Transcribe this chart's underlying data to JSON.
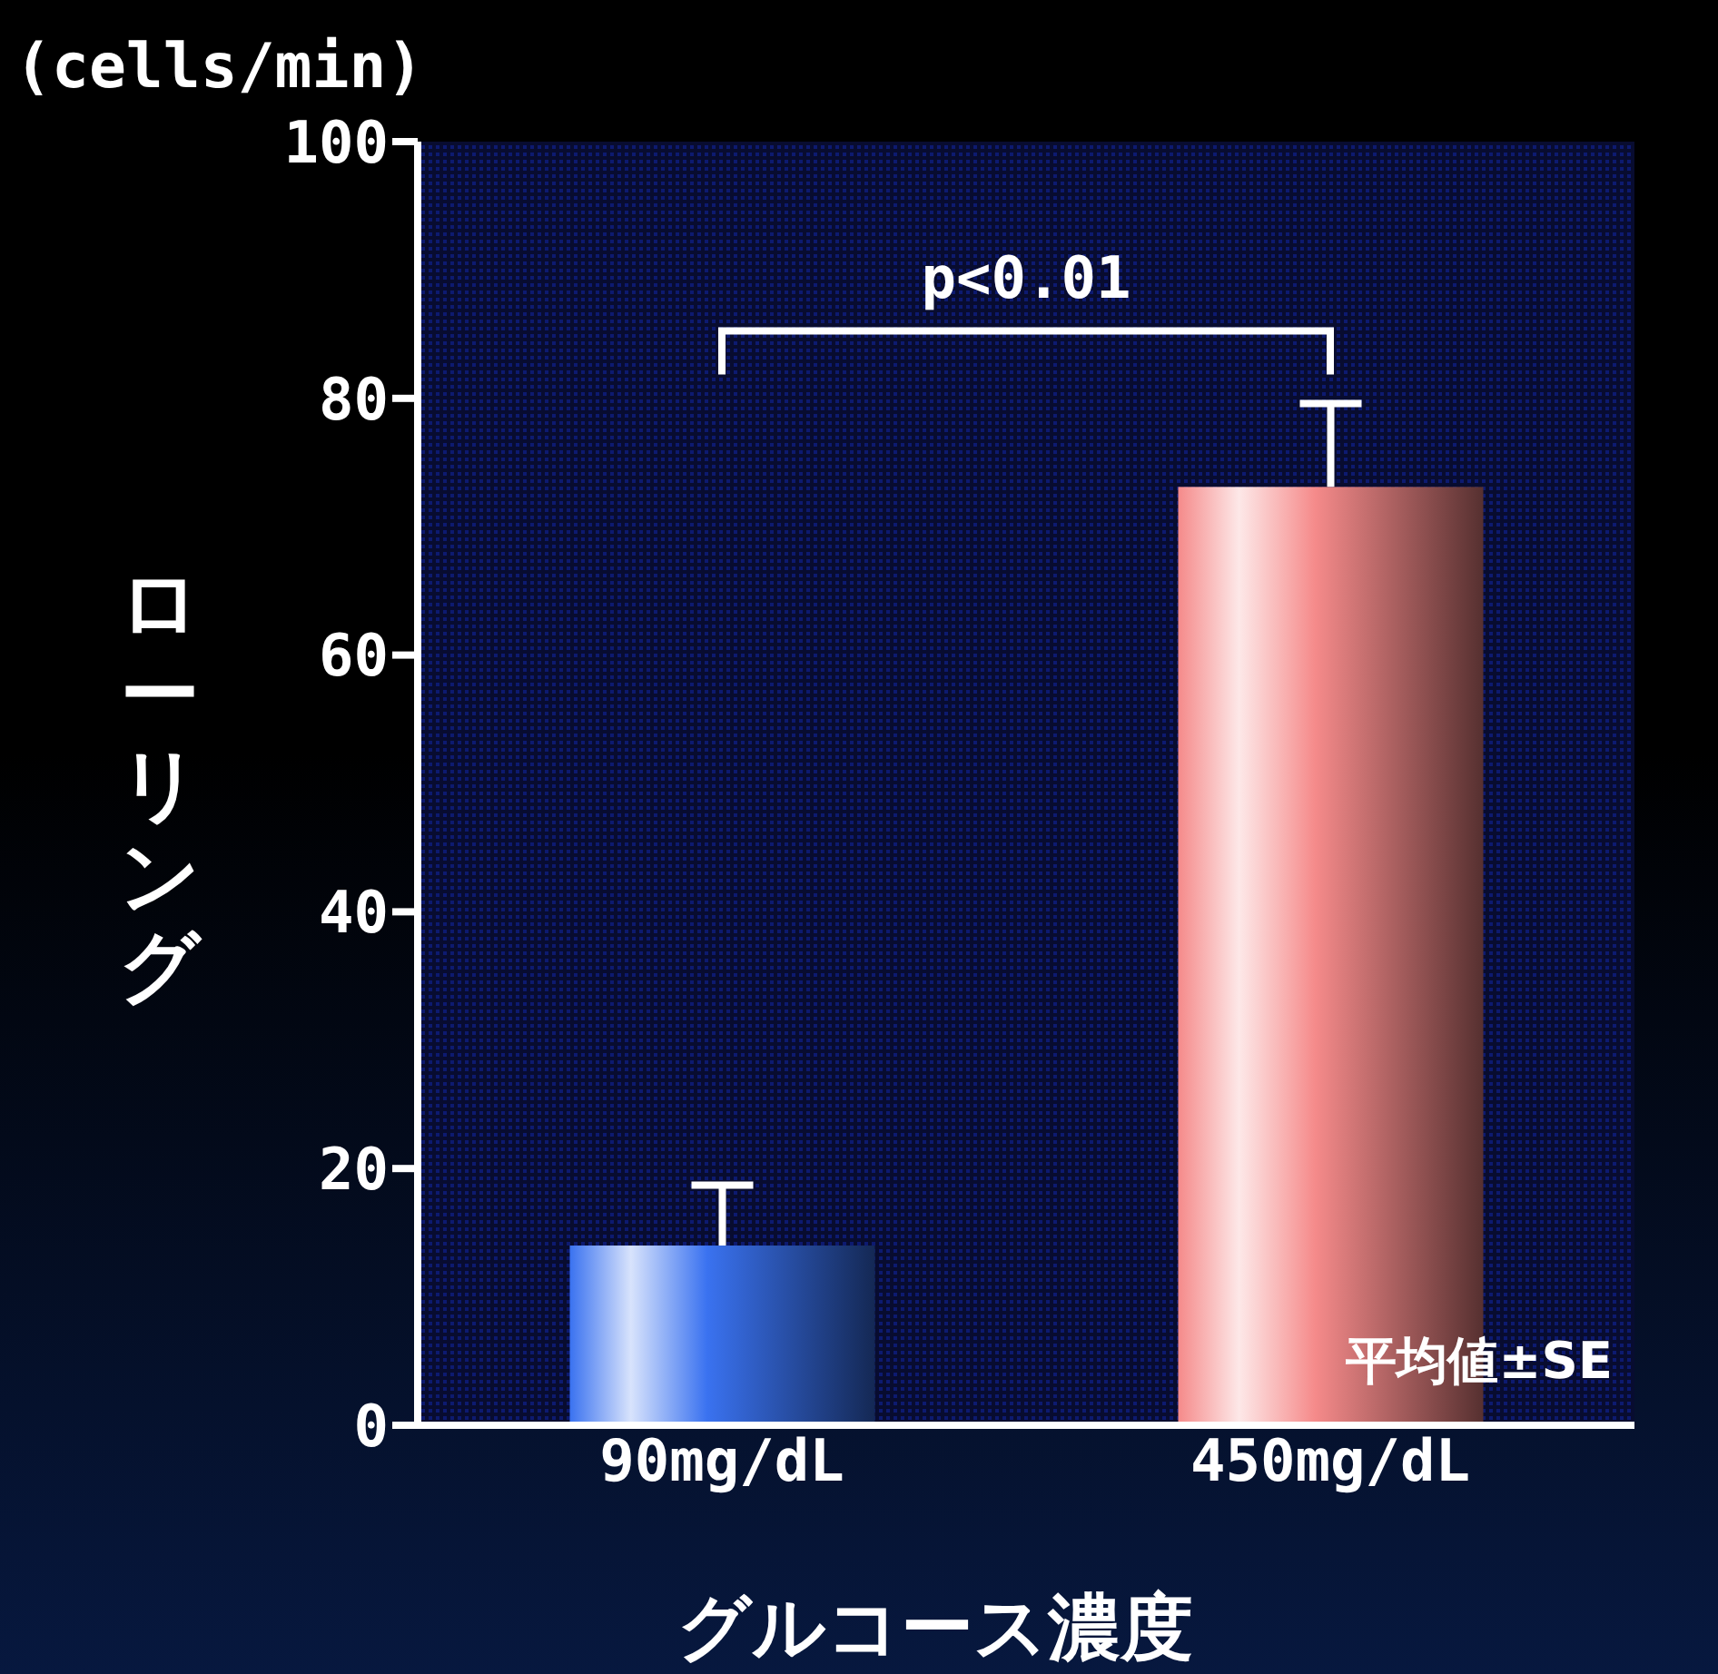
{
  "chart_data": {
    "type": "bar",
    "ylabel": "ローリング",
    "xlabel": "グルコース濃度",
    "categories": [
      "90mg/dL",
      "450mg/dL"
    ],
    "values": [
      14,
      73.1
    ],
    "colors": [
      "#3a72f0",
      "#f58a8a"
    ],
    "errors": [
      [
        14,
        18.7
      ],
      [
        73.1,
        79.6
      ]
    ],
    "ylim": [
      0,
      100
    ],
    "yticks": [
      0,
      20,
      40,
      60,
      80,
      100
    ],
    "grid": false,
    "annotations": [
      "p<0.01",
      "(cells/min)",
      "平均値±SE"
    ]
  }
}
